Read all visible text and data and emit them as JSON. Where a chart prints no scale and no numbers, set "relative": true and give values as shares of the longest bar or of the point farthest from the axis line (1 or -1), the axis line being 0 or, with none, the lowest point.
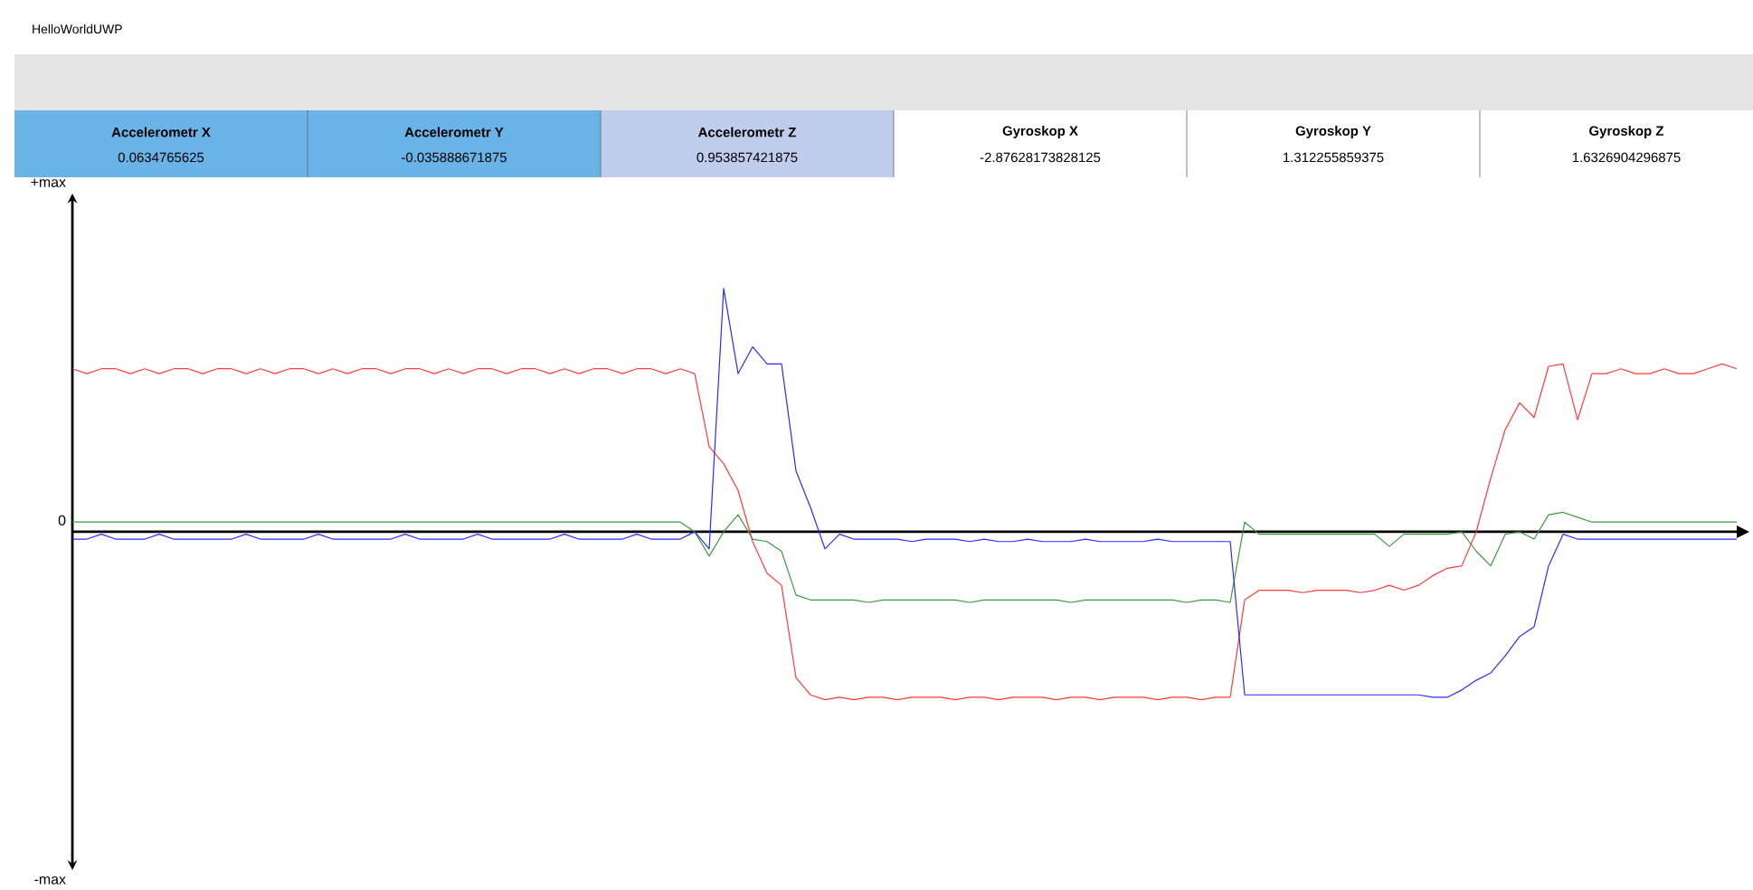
{
  "chart_data": {
    "type": "line",
    "title": "HelloWorldUWP",
    "relative": true,
    "annotations": [
      "Accelerometr X",
      "0.0634765625",
      "Accelerometr Y",
      "-0.035888671875",
      "Accelerometr Z",
      "0.953857421875",
      "Gyroskop X",
      "-2.87628173828125",
      "Gyroskop Y",
      "1.312255859375",
      "Gyroskop Z",
      "1.6326904296875",
      "+max",
      "0",
      "-max"
    ],
    "categories": [
      null,
      null,
      null,
      null,
      null,
      null,
      null,
      null,
      null,
      null,
      null,
      null,
      null,
      null,
      null,
      null,
      null,
      null,
      null,
      null,
      null,
      null,
      null,
      null,
      null,
      null,
      null,
      null,
      null,
      null,
      null,
      null,
      null,
      null,
      null,
      null,
      null,
      null,
      null,
      null,
      null,
      null,
      null,
      null,
      null,
      null,
      null,
      null,
      null,
      null,
      null,
      null,
      null,
      null,
      null,
      null,
      null,
      null,
      null,
      null,
      null,
      null,
      null,
      null,
      null,
      null,
      null,
      null,
      null,
      null,
      null,
      null,
      null,
      null,
      null,
      null,
      null,
      null,
      null,
      null,
      null,
      null,
      null,
      null,
      null,
      null,
      null,
      null,
      null,
      null,
      null,
      null,
      null,
      null,
      null,
      null,
      null,
      null,
      null,
      null,
      null,
      null,
      null,
      null,
      null,
      null,
      null,
      null,
      null,
      null,
      null,
      null,
      null,
      null,
      null,
      null
    ],
    "marker": "none",
    "line_style": "solid",
    "series": [
      {
        "color": "#ff3b3b",
        "values": [
          0.67,
          0.65,
          0.67,
          0.67,
          0.65,
          0.67,
          0.65,
          0.67,
          0.67,
          0.65,
          0.67,
          0.67,
          0.65,
          0.67,
          0.65,
          0.67,
          0.67,
          0.65,
          0.67,
          0.65,
          0.67,
          0.67,
          0.65,
          0.67,
          0.67,
          0.65,
          0.67,
          0.65,
          0.67,
          0.67,
          0.65,
          0.67,
          0.67,
          0.65,
          0.67,
          0.65,
          0.67,
          0.67,
          0.65,
          0.67,
          0.67,
          0.65,
          0.67,
          0.65,
          0.35,
          0.28,
          0.17,
          -0.04,
          -0.17,
          -0.22,
          -0.6,
          -0.67,
          -0.69,
          -0.68,
          -0.69,
          -0.68,
          -0.68,
          -0.69,
          -0.68,
          -0.68,
          -0.68,
          -0.69,
          -0.68,
          -0.68,
          -0.69,
          -0.68,
          -0.68,
          -0.68,
          -0.69,
          -0.68,
          -0.68,
          -0.69,
          -0.68,
          -0.68,
          -0.68,
          -0.69,
          -0.68,
          -0.68,
          -0.69,
          -0.68,
          -0.68,
          -0.28,
          -0.24,
          -0.24,
          -0.24,
          -0.25,
          -0.24,
          -0.24,
          -0.24,
          -0.25,
          -0.24,
          -0.22,
          -0.24,
          -0.22,
          -0.18,
          -0.15,
          -0.14,
          0.0,
          0.22,
          0.42,
          0.53,
          0.47,
          0.68,
          0.69,
          0.46,
          0.65,
          0.65,
          0.67,
          0.65,
          0.65,
          0.67,
          0.65,
          0.65,
          0.67,
          0.69,
          0.67
        ]
      },
      {
        "color": "#3c9a3c",
        "values": [
          0.04,
          0.04,
          0.04,
          0.04,
          0.04,
          0.04,
          0.04,
          0.04,
          0.04,
          0.04,
          0.04,
          0.04,
          0.04,
          0.04,
          0.04,
          0.04,
          0.04,
          0.04,
          0.04,
          0.04,
          0.04,
          0.04,
          0.04,
          0.04,
          0.04,
          0.04,
          0.04,
          0.04,
          0.04,
          0.04,
          0.04,
          0.04,
          0.04,
          0.04,
          0.04,
          0.04,
          0.04,
          0.04,
          0.04,
          0.04,
          0.04,
          0.04,
          0.04,
          0.0,
          -0.1,
          0.0,
          0.07,
          -0.03,
          -0.04,
          -0.08,
          -0.26,
          -0.28,
          -0.28,
          -0.28,
          -0.28,
          -0.29,
          -0.28,
          -0.28,
          -0.28,
          -0.28,
          -0.28,
          -0.28,
          -0.29,
          -0.28,
          -0.28,
          -0.28,
          -0.28,
          -0.28,
          -0.28,
          -0.29,
          -0.28,
          -0.28,
          -0.28,
          -0.28,
          -0.28,
          -0.28,
          -0.28,
          -0.29,
          -0.28,
          -0.28,
          -0.29,
          0.04,
          -0.01,
          -0.01,
          -0.01,
          -0.01,
          -0.01,
          -0.01,
          -0.01,
          -0.01,
          -0.01,
          -0.06,
          -0.01,
          -0.01,
          -0.01,
          -0.01,
          0.0,
          -0.08,
          -0.14,
          -0.01,
          0.0,
          -0.03,
          0.07,
          0.08,
          0.06,
          0.04,
          0.04,
          0.04,
          0.04,
          0.04,
          0.04,
          0.04,
          0.04,
          0.04,
          0.04,
          0.04
        ]
      },
      {
        "color": "#2b2bff",
        "values": [
          -0.03,
          -0.03,
          -0.01,
          -0.03,
          -0.03,
          -0.03,
          -0.01,
          -0.03,
          -0.03,
          -0.03,
          -0.03,
          -0.03,
          -0.01,
          -0.03,
          -0.03,
          -0.03,
          -0.03,
          -0.01,
          -0.03,
          -0.03,
          -0.03,
          -0.03,
          -0.03,
          -0.01,
          -0.03,
          -0.03,
          -0.03,
          -0.03,
          -0.01,
          -0.03,
          -0.03,
          -0.03,
          -0.03,
          -0.03,
          -0.01,
          -0.03,
          -0.03,
          -0.03,
          -0.03,
          -0.01,
          -0.03,
          -0.03,
          -0.03,
          0.0,
          -0.07,
          1,
          0.65,
          0.76,
          0.69,
          0.69,
          0.25,
          0.1,
          -0.07,
          -0.01,
          -0.03,
          -0.03,
          -0.03,
          -0.03,
          -0.04,
          -0.03,
          -0.03,
          -0.03,
          -0.04,
          -0.03,
          -0.04,
          -0.04,
          -0.03,
          -0.04,
          -0.04,
          -0.04,
          -0.03,
          -0.04,
          -0.04,
          -0.04,
          -0.04,
          -0.03,
          -0.04,
          -0.04,
          -0.04,
          -0.04,
          -0.04,
          -0.67,
          -0.67,
          -0.67,
          -0.67,
          -0.67,
          -0.67,
          -0.67,
          -0.67,
          -0.67,
          -0.67,
          -0.67,
          -0.67,
          -0.67,
          -0.68,
          -0.68,
          -0.65,
          -0.61,
          -0.58,
          -0.51,
          -0.43,
          -0.39,
          -0.14,
          -0.01,
          -0.03,
          -0.03,
          -0.03,
          -0.03,
          -0.03,
          -0.03,
          -0.03,
          -0.03,
          -0.03,
          -0.03,
          -0.03,
          -0.03
        ]
      }
    ]
  }
}
